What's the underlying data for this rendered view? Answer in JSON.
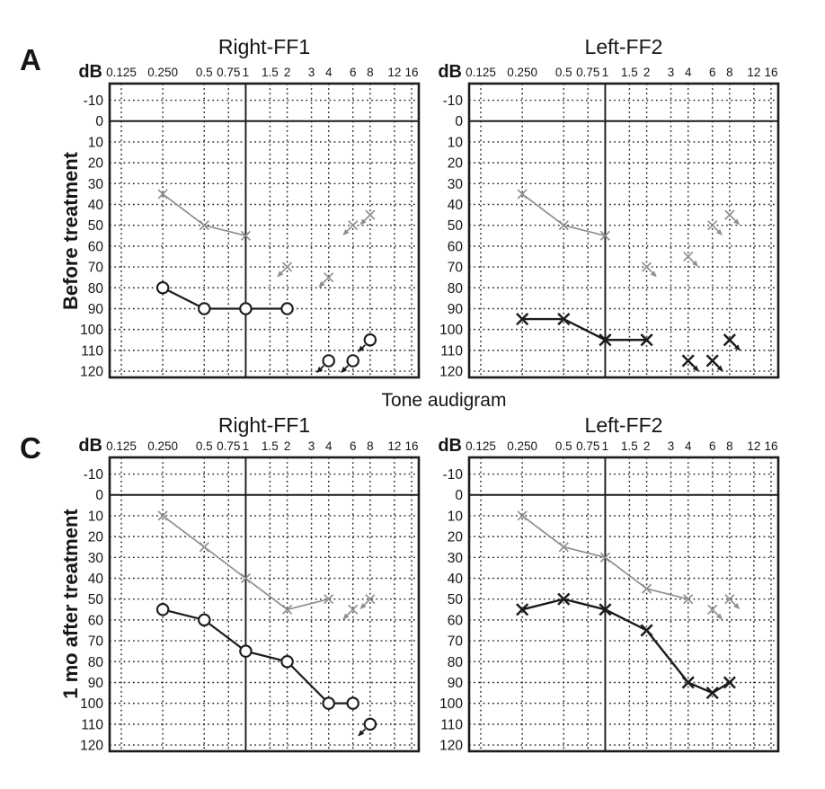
{
  "figure": {
    "center_title": "Tone audigram",
    "panels": [
      {
        "letter": "A",
        "row_label": "Before treatment"
      },
      {
        "letter": "C",
        "row_label": "1 mo after treatment"
      }
    ]
  },
  "colors": {
    "ink": "#1c1c1c",
    "gray_series": "#8f8f8f",
    "black_series": "#1c1c1c",
    "background": "#ffffff"
  },
  "chart_data": [
    {
      "type": "line",
      "panel": "A",
      "row_label": "Before treatment",
      "title": "Right-FF1",
      "y_label": "dB",
      "x_scale": "log2-octaves",
      "x_tick_values": [
        0.125,
        0.25,
        0.5,
        0.75,
        1,
        1.5,
        2,
        3,
        4,
        6,
        8,
        12,
        16
      ],
      "x_tick_labels": [
        "0.125",
        "0.250",
        "0.5",
        "0.75",
        "1",
        "1.5",
        "2",
        "3",
        "4",
        "6",
        "8",
        "12",
        "16"
      ],
      "y_tick_values": [
        -10,
        0,
        10,
        20,
        30,
        40,
        50,
        60,
        70,
        80,
        90,
        100,
        110,
        120
      ],
      "y_tick_labels": [
        "-10",
        "0",
        "10",
        "20",
        "30",
        "40",
        "50",
        "60",
        "70",
        "80",
        "90",
        "100",
        "110",
        "120"
      ],
      "y_range": [
        -18,
        123
      ],
      "y_axis_direction": "increasing-downward",
      "grid": "dotted",
      "solid_line_x": 1,
      "solid_line_y": 0,
      "no_response_arrow": "down-left",
      "series": [
        {
          "name": "gray-x-line",
          "marker": "x",
          "color": "#8f8f8f",
          "line_width": 1.7,
          "marker_size": 5,
          "marker_stroke": 1.7,
          "points": [
            [
              0.25,
              35
            ],
            [
              0.5,
              50
            ],
            [
              1,
              55
            ]
          ],
          "no_response_points": [
            [
              2,
              70
            ],
            [
              4,
              75
            ],
            [
              6,
              50
            ],
            [
              8,
              45
            ]
          ]
        },
        {
          "name": "black-circle-line",
          "marker": "circle",
          "color": "#1c1c1c",
          "line_width": 2.2,
          "marker_size": 6.2,
          "marker_stroke": 2.1,
          "points": [
            [
              0.25,
              80
            ],
            [
              0.5,
              90
            ],
            [
              1,
              90
            ],
            [
              2,
              90
            ]
          ],
          "no_response_points": [
            [
              4,
              115
            ],
            [
              6,
              115
            ],
            [
              8,
              105
            ]
          ]
        }
      ]
    },
    {
      "type": "line",
      "panel": "A",
      "row_label": "Before treatment",
      "title": "Left-FF2",
      "y_label": "dB",
      "x_scale": "log2-octaves",
      "x_tick_values": [
        0.125,
        0.25,
        0.5,
        0.75,
        1,
        1.5,
        2,
        3,
        4,
        6,
        8,
        12,
        16
      ],
      "x_tick_labels": [
        "0.125",
        "0.250",
        "0.5",
        "0.75",
        "1",
        "1.5",
        "2",
        "3",
        "4",
        "6",
        "8",
        "12",
        "16"
      ],
      "y_tick_values": [
        -10,
        0,
        10,
        20,
        30,
        40,
        50,
        60,
        70,
        80,
        90,
        100,
        110,
        120
      ],
      "y_tick_labels": [
        "-10",
        "0",
        "10",
        "20",
        "30",
        "40",
        "50",
        "60",
        "70",
        "80",
        "90",
        "100",
        "110",
        "120"
      ],
      "y_range": [
        -18,
        123
      ],
      "y_axis_direction": "increasing-downward",
      "grid": "dotted",
      "solid_line_x": 1,
      "solid_line_y": 0,
      "no_response_arrow": "down-right",
      "series": [
        {
          "name": "gray-x-line",
          "marker": "x",
          "color": "#8f8f8f",
          "line_width": 1.7,
          "marker_size": 5,
          "marker_stroke": 1.7,
          "points": [
            [
              0.25,
              35
            ],
            [
              0.5,
              50
            ],
            [
              1,
              55
            ]
          ],
          "no_response_points": [
            [
              2,
              70
            ],
            [
              4,
              65
            ],
            [
              6,
              50
            ],
            [
              8,
              45
            ]
          ]
        },
        {
          "name": "black-x-line",
          "marker": "x",
          "color": "#1c1c1c",
          "line_width": 2.4,
          "marker_size": 6.2,
          "marker_stroke": 2.5,
          "points": [
            [
              0.25,
              95
            ],
            [
              0.5,
              95
            ],
            [
              1,
              105
            ],
            [
              2,
              105
            ]
          ],
          "no_response_points": [
            [
              4,
              115
            ],
            [
              6,
              115
            ],
            [
              8,
              105
            ]
          ]
        }
      ]
    },
    {
      "type": "line",
      "panel": "C",
      "row_label": "1 mo after treatment",
      "title": "Right-FF1",
      "y_label": "dB",
      "x_scale": "log2-octaves",
      "x_tick_values": [
        0.125,
        0.25,
        0.5,
        0.75,
        1,
        1.5,
        2,
        3,
        4,
        6,
        8,
        12,
        16
      ],
      "x_tick_labels": [
        "0.125",
        "0.250",
        "0.5",
        "0.75",
        "1",
        "1.5",
        "2",
        "3",
        "4",
        "6",
        "8",
        "12",
        "16"
      ],
      "y_tick_values": [
        -10,
        0,
        10,
        20,
        30,
        40,
        50,
        60,
        70,
        80,
        90,
        100,
        110,
        120
      ],
      "y_tick_labels": [
        "-10",
        "0",
        "10",
        "20",
        "30",
        "40",
        "50",
        "60",
        "70",
        "80",
        "90",
        "100",
        "110",
        "120"
      ],
      "y_range": [
        -18,
        123
      ],
      "y_axis_direction": "increasing-downward",
      "grid": "dotted",
      "solid_line_x": 1,
      "solid_line_y": 0,
      "no_response_arrow": "down-left",
      "series": [
        {
          "name": "gray-x-line",
          "marker": "x",
          "color": "#8f8f8f",
          "line_width": 1.7,
          "marker_size": 5,
          "marker_stroke": 1.7,
          "points": [
            [
              0.25,
              10
            ],
            [
              0.5,
              25
            ],
            [
              1,
              40
            ],
            [
              2,
              55
            ],
            [
              4,
              50
            ]
          ],
          "no_response_points": [
            [
              6,
              55
            ],
            [
              8,
              50
            ]
          ]
        },
        {
          "name": "black-circle-line",
          "marker": "circle",
          "color": "#1c1c1c",
          "line_width": 2.2,
          "marker_size": 6.2,
          "marker_stroke": 2.1,
          "points": [
            [
              0.25,
              55
            ],
            [
              0.5,
              60
            ],
            [
              1,
              75
            ],
            [
              2,
              80
            ],
            [
              4,
              100
            ],
            [
              6,
              100
            ]
          ],
          "no_response_points": [
            [
              8,
              110
            ]
          ]
        }
      ]
    },
    {
      "type": "line",
      "panel": "C",
      "row_label": "1 mo after treatment",
      "title": "Left-FF2",
      "y_label": "dB",
      "x_scale": "log2-octaves",
      "x_tick_values": [
        0.125,
        0.25,
        0.5,
        0.75,
        1,
        1.5,
        2,
        3,
        4,
        6,
        8,
        12,
        16
      ],
      "x_tick_labels": [
        "0.125",
        "0.250",
        "0.5",
        "0.75",
        "1",
        "1.5",
        "2",
        "3",
        "4",
        "6",
        "8",
        "12",
        "16"
      ],
      "y_tick_values": [
        -10,
        0,
        10,
        20,
        30,
        40,
        50,
        60,
        70,
        80,
        90,
        100,
        110,
        120
      ],
      "y_tick_labels": [
        "-10",
        "0",
        "10",
        "20",
        "30",
        "40",
        "50",
        "60",
        "70",
        "80",
        "90",
        "100",
        "110",
        "120"
      ],
      "y_range": [
        -18,
        123
      ],
      "y_axis_direction": "increasing-downward",
      "grid": "dotted",
      "solid_line_x": 1,
      "solid_line_y": 0,
      "no_response_arrow": "down-right",
      "series": [
        {
          "name": "gray-x-line",
          "marker": "x",
          "color": "#8f8f8f",
          "line_width": 1.7,
          "marker_size": 5,
          "marker_stroke": 1.7,
          "points": [
            [
              0.25,
              10
            ],
            [
              0.5,
              25
            ],
            [
              1,
              30
            ],
            [
              2,
              45
            ],
            [
              4,
              50
            ]
          ],
          "no_response_points": [
            [
              6,
              55
            ],
            [
              8,
              50
            ]
          ]
        },
        {
          "name": "black-x-line",
          "marker": "x",
          "color": "#1c1c1c",
          "line_width": 2.4,
          "marker_size": 6.2,
          "marker_stroke": 2.5,
          "points": [
            [
              0.25,
              55
            ],
            [
              0.5,
              50
            ],
            [
              1,
              55
            ],
            [
              2,
              65
            ],
            [
              4,
              90
            ],
            [
              6,
              95
            ],
            [
              8,
              90
            ]
          ],
          "no_response_points": []
        }
      ]
    }
  ]
}
